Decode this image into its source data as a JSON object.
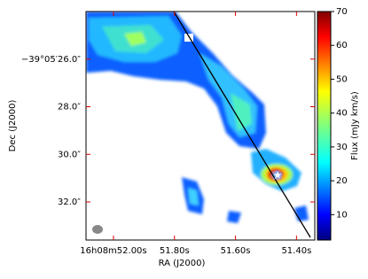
{
  "chart_data": {
    "type": "image",
    "xlabel": "RA (J2000)",
    "ylabel": "Dec (J2000)",
    "xlim": [
      52.09,
      51.34
    ],
    "xticks": [
      {
        "value": 52.0,
        "label": "16h08m52.00s"
      },
      {
        "value": 51.8,
        "label": "51.80s"
      },
      {
        "value": 51.6,
        "label": "51.60s"
      },
      {
        "value": 51.4,
        "label": "51.40s"
      }
    ],
    "ylim": [
      33.6,
      24.0
    ],
    "yticks": [
      {
        "value": 26.0,
        "label": "−39°05′26.0″"
      },
      {
        "value": 28.0,
        "label": "28.0″"
      },
      {
        "value": 30.0,
        "label": "30.0″"
      },
      {
        "value": 32.0,
        "label": "32.0″"
      }
    ],
    "colorbar": {
      "label": "Flux (mJy km/s)",
      "lim": [
        2.5,
        70
      ],
      "ticks": [
        10,
        20,
        30,
        40,
        50,
        60,
        70
      ]
    }
  }
}
